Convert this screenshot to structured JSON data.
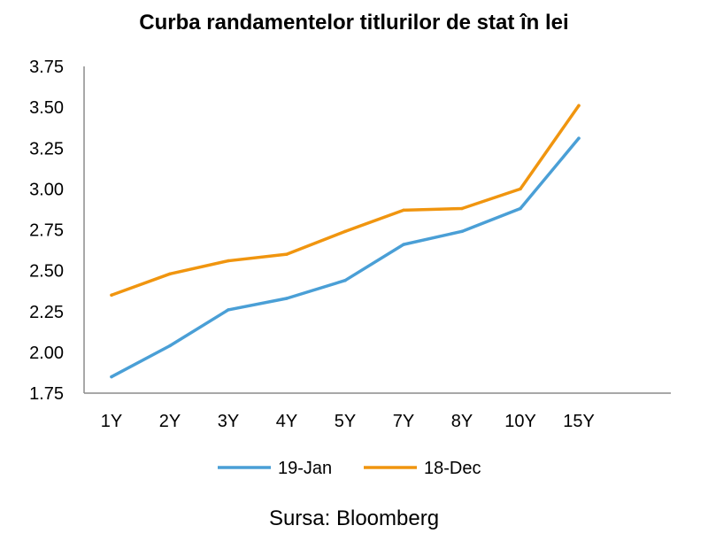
{
  "chart_data": {
    "type": "line",
    "title": "Curba randamentelor titlurilor de stat în lei",
    "xlabel": "",
    "ylabel": "",
    "categories": [
      "1Y",
      "2Y",
      "3Y",
      "4Y",
      "5Y",
      "7Y",
      "8Y",
      "10Y",
      "15Y"
    ],
    "series": [
      {
        "name": "19-Jan",
        "color": "#4a9fd6",
        "values": [
          1.85,
          2.04,
          2.26,
          2.33,
          2.44,
          2.66,
          2.74,
          2.88,
          3.31
        ]
      },
      {
        "name": "18-Dec",
        "color": "#f0950f",
        "values": [
          2.35,
          2.48,
          2.56,
          2.6,
          2.74,
          2.87,
          2.88,
          3.0,
          3.51
        ]
      }
    ],
    "ylim": [
      1.75,
      3.75
    ],
    "yticks": [
      "1.75",
      "2.00",
      "2.25",
      "2.50",
      "2.75",
      "3.00",
      "3.25",
      "3.50",
      "3.75"
    ],
    "grid": false,
    "legend_position": "bottom"
  },
  "source": "Sursa: Bloomberg"
}
